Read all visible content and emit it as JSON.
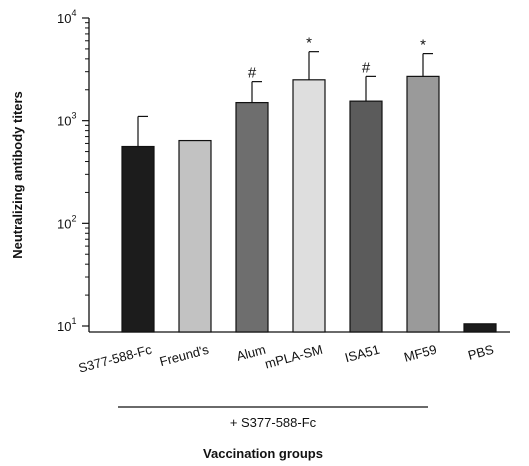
{
  "chart_data": {
    "type": "bar",
    "title": "",
    "ylabel": "Neutralizing antibody titers",
    "xlabel": "Vaccination groups",
    "yscale": "log",
    "ylim": [
      10,
      10000
    ],
    "y_ticks": [
      {
        "value": 10,
        "base": "10",
        "exp": "1"
      },
      {
        "value": 100,
        "base": "10",
        "exp": "2"
      },
      {
        "value": 1000,
        "base": "10",
        "exp": "3"
      },
      {
        "value": 10000,
        "base": "10",
        "exp": "4"
      }
    ],
    "categories": [
      "S377-588-Fc",
      "Freund's",
      "Alum",
      "mPLA-SM",
      "ISA51",
      "MF59",
      "PBS"
    ],
    "values": [
      560,
      640,
      1500,
      2500,
      1550,
      2700,
      10.5
    ],
    "error_upper": [
      1100,
      null,
      2400,
      4700,
      2700,
      4500,
      null
    ],
    "significance": [
      "",
      "",
      "#",
      "*",
      "#",
      "*",
      ""
    ],
    "bar_colors": [
      "#1c1c1c",
      "#c2c2c2",
      "#6e6e6e",
      "#dedede",
      "#5b5b5b",
      "#9a9a9a",
      "#1c1c1c"
    ],
    "grouping": {
      "label": "+ S377-588-Fc",
      "from_category": "Freund's",
      "to_category": "MF59"
    },
    "grid": false,
    "legend": "none"
  }
}
